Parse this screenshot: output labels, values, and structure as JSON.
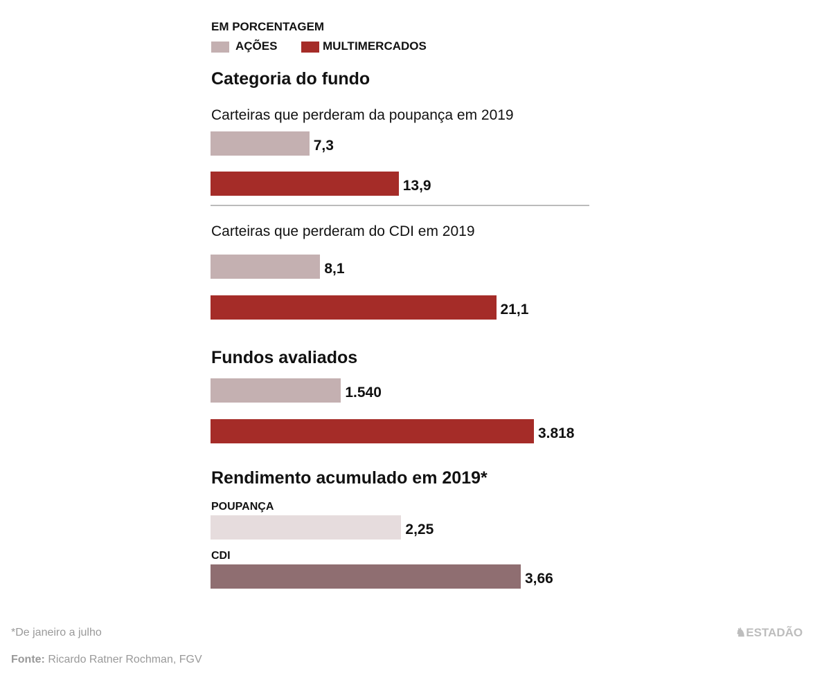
{
  "chart_data": {
    "type": "bar",
    "orientation": "horizontal",
    "unit_label": "EM PORCENTAGEM",
    "legend": [
      {
        "label": "AÇÕES",
        "color": "#c4b0b1"
      },
      {
        "label": "MULTIMERCADOS",
        "color": "#a52c28"
      }
    ],
    "section_title": "Categoria do fundo",
    "groups": [
      {
        "title": "Carteiras que perderam da poupança em 2019",
        "values": [
          7.3,
          13.9
        ],
        "labels": [
          "7,3",
          "13,9"
        ]
      },
      {
        "title": "Carteiras que perderam do CDI em 2019",
        "values": [
          8.1,
          21.1
        ],
        "labels": [
          "8,1",
          "21,1"
        ]
      },
      {
        "title": "Fundos avaliados",
        "values": [
          1540,
          3818
        ],
        "labels": [
          "1.540",
          "3.818"
        ]
      },
      {
        "title": "Rendimento acumulado em 2019*",
        "series": [
          {
            "name": "POUPANÇA",
            "value": 2.25,
            "label": "2,25",
            "color": "#e6dcdd"
          },
          {
            "name": "CDI",
            "value": 3.66,
            "label": "3,66",
            "color": "#8f6e71"
          }
        ]
      }
    ]
  },
  "footer": {
    "note": "*De janeiro a julho",
    "source_label": "Fonte:",
    "source": "Ricardo Ratner Rochman, FGV",
    "logo": "ESTADÃO"
  }
}
